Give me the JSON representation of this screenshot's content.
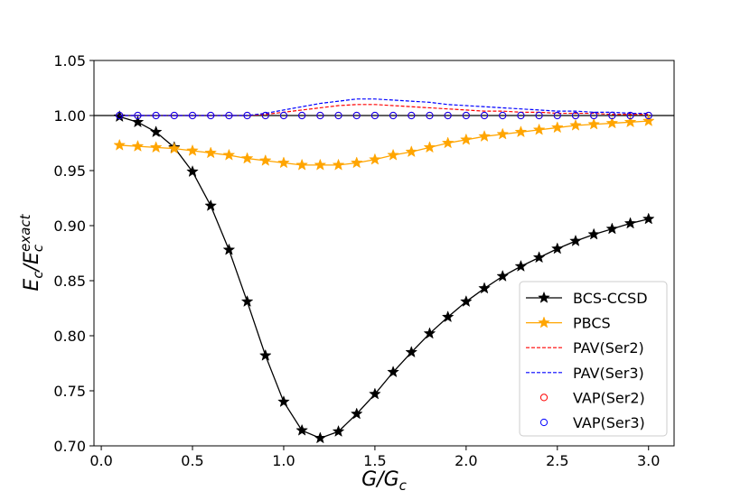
{
  "chart_data": {
    "type": "line",
    "title": "",
    "xlabel": "G/Gc",
    "xlabel_main": "G/G",
    "xlabel_sub": "c",
    "ylabel": "Ec/Ec^exact",
    "ylabel_main": "E",
    "ylabel_sub1": "c",
    "ylabel_slash": "/E",
    "ylabel_sub2": "c",
    "ylabel_sup": "exact",
    "xlim": [
      -0.04,
      3.14
    ],
    "ylim": [
      0.7,
      1.05
    ],
    "xticks": [
      0.0,
      0.5,
      1.0,
      1.5,
      2.0,
      2.5,
      3.0
    ],
    "xtick_labels": [
      "0.0",
      "0.5",
      "1.0",
      "1.5",
      "2.0",
      "2.5",
      "3.0"
    ],
    "yticks": [
      0.7,
      0.75,
      0.8,
      0.85,
      0.9,
      0.95,
      1.0,
      1.05
    ],
    "ytick_labels": [
      "0.70",
      "0.75",
      "0.80",
      "0.85",
      "0.90",
      "0.95",
      "1.00",
      "1.05"
    ],
    "reference_line": 1.0,
    "legend_position": "lower-right",
    "x": [
      0.1,
      0.2,
      0.3,
      0.4,
      0.5,
      0.6,
      0.7,
      0.8,
      0.9,
      1.0,
      1.1,
      1.2,
      1.3,
      1.4,
      1.5,
      1.6,
      1.7,
      1.8,
      1.9,
      2.0,
      2.1,
      2.2,
      2.3,
      2.4,
      2.5,
      2.6,
      2.7,
      2.8,
      2.9,
      3.0
    ],
    "series": [
      {
        "name": "BCS-CCSD",
        "color": "#000000",
        "style": "line-star",
        "values": [
          0.999,
          0.994,
          0.985,
          0.971,
          0.949,
          0.918,
          0.878,
          0.831,
          0.782,
          0.74,
          0.714,
          0.707,
          0.713,
          0.729,
          0.747,
          0.767,
          0.785,
          0.802,
          0.817,
          0.831,
          0.843,
          0.854,
          0.863,
          0.871,
          0.879,
          0.886,
          0.892,
          0.897,
          0.902,
          0.906
        ]
      },
      {
        "name": "PBCS",
        "color": "#ffa500",
        "style": "line-star",
        "values": [
          0.973,
          0.972,
          0.971,
          0.97,
          0.968,
          0.966,
          0.964,
          0.961,
          0.959,
          0.957,
          0.955,
          0.955,
          0.955,
          0.957,
          0.96,
          0.964,
          0.967,
          0.971,
          0.975,
          0.978,
          0.981,
          0.983,
          0.985,
          0.987,
          0.989,
          0.991,
          0.992,
          0.993,
          0.994,
          0.995
        ]
      },
      {
        "name": "PAV(Ser2)",
        "color": "#ff0000",
        "style": "dashed",
        "values": [
          1.0,
          1.0,
          1.0,
          1.0,
          1.0,
          1.0,
          1.0,
          1.0,
          1.001,
          1.003,
          1.005,
          1.007,
          1.009,
          1.01,
          1.01,
          1.009,
          1.008,
          1.007,
          1.006,
          1.005,
          1.004,
          1.004,
          1.003,
          1.003,
          1.002,
          1.002,
          1.002,
          1.001,
          1.001,
          1.001
        ]
      },
      {
        "name": "PAV(Ser3)",
        "color": "#0000ff",
        "style": "dashed",
        "values": [
          1.0,
          1.0,
          1.0,
          1.0,
          1.0,
          1.0,
          1.0,
          1.0,
          1.002,
          1.005,
          1.008,
          1.011,
          1.013,
          1.015,
          1.015,
          1.014,
          1.013,
          1.012,
          1.01,
          1.009,
          1.008,
          1.007,
          1.006,
          1.005,
          1.004,
          1.004,
          1.003,
          1.003,
          1.002,
          1.002
        ]
      },
      {
        "name": "VAP(Ser2)",
        "color": "#ff0000",
        "style": "circle",
        "values": [
          1.0,
          1.0,
          1.0,
          1.0,
          1.0,
          1.0,
          1.0,
          1.0,
          1.0,
          1.0,
          1.0,
          1.0,
          1.0,
          1.0,
          1.0,
          1.0,
          1.0,
          1.0,
          1.0,
          1.0,
          1.0,
          1.0,
          1.0,
          1.0,
          1.0,
          1.0,
          1.0,
          1.0,
          1.0,
          1.0
        ]
      },
      {
        "name": "VAP(Ser3)",
        "color": "#0000ff",
        "style": "circle",
        "values": [
          1.0,
          1.0,
          1.0,
          1.0,
          1.0,
          1.0,
          1.0,
          1.0,
          1.0,
          1.0,
          1.0,
          1.0,
          1.0,
          1.0,
          1.0,
          1.0,
          1.0,
          1.0,
          1.0,
          1.0,
          1.0,
          1.0,
          1.0,
          1.0,
          1.0,
          1.0,
          1.0,
          1.0,
          1.0,
          1.0
        ]
      }
    ]
  }
}
